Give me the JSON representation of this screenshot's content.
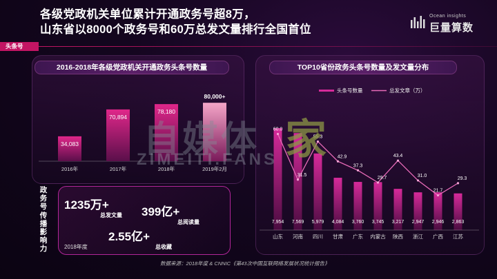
{
  "title_lines": [
    "各级党政机关单位累计开通政务号超8万，",
    "山东省以8000个政务号和60万总发文量排行全国首位"
  ],
  "logo": {
    "en": "Ocean insights",
    "cn": "巨量算数"
  },
  "tag": "头条号",
  "left_panel": {
    "title": "2016-2018年各级党政机关开通政务头条号数量"
  },
  "right_panel": {
    "title": "TOP10省份政务头条号数量及发文量分布"
  },
  "vertical_label": [
    "政",
    "务",
    "号",
    "传",
    "播",
    "影",
    "响",
    "力"
  ],
  "stats": {
    "s1_value": "1235万+",
    "s1_label": "总发文量",
    "s2_value": "399亿+",
    "s2_label": "总阅读量",
    "s3_value": "2.55亿+",
    "s3_label": "总收藏",
    "year": "2018年度"
  },
  "source": "数据来源：2018年度 & CNNIC《第43次中国互联网络发展状况统计报告》",
  "watermark": {
    "w1": "自媒体",
    "w2": "家",
    "w3": "ZIMEITI.FANS"
  },
  "chart_data": [
    {
      "type": "bar",
      "title": "2016-2018年各级党政机关开通政务头条号数量",
      "categories": [
        "2016年",
        "2017年",
        "2018年",
        "2019年2月"
      ],
      "values": [
        34083,
        70894,
        78180,
        80000
      ],
      "data_labels": [
        "34,083",
        "70,894",
        "78,180",
        "80,000+"
      ],
      "ylim": [
        0,
        100000
      ]
    },
    {
      "type": "bar",
      "title": "TOP10省份政务头条号数量及发文量分布",
      "categories": [
        "山东",
        "河南",
        "四川",
        "甘肃",
        "广东",
        "内蒙古",
        "陕西",
        "浙江",
        "广西",
        "江苏"
      ],
      "legend": [
        "头条号数量",
        "总发文章（万）"
      ],
      "series": [
        {
          "name": "头条号数量",
          "type": "bar",
          "values": [
            7954,
            7569,
            5979,
            4084,
            3760,
            3745,
            3217,
            2947,
            2946,
            2863
          ],
          "data_labels": [
            "7,954",
            "7,569",
            "5,979",
            "4,084",
            "3,760",
            "3,745",
            "3,217",
            "2,947",
            "2,946",
            "2,863"
          ]
        },
        {
          "name": "总发文章（万）",
          "type": "line",
          "values": [
            60.0,
            31.5,
            55.3,
            42.9,
            37.3,
            29.7,
            43.4,
            31.0,
            21.7,
            29.3
          ],
          "data_labels": [
            "60.0",
            "31.5",
            "55.3",
            "42.9",
            "37.3",
            "29.7",
            "43.4",
            "31.0",
            "21.7",
            "29.3"
          ]
        }
      ],
      "ylim_bar": [
        0,
        10000
      ],
      "ylim_line": [
        0,
        80
      ]
    }
  ]
}
